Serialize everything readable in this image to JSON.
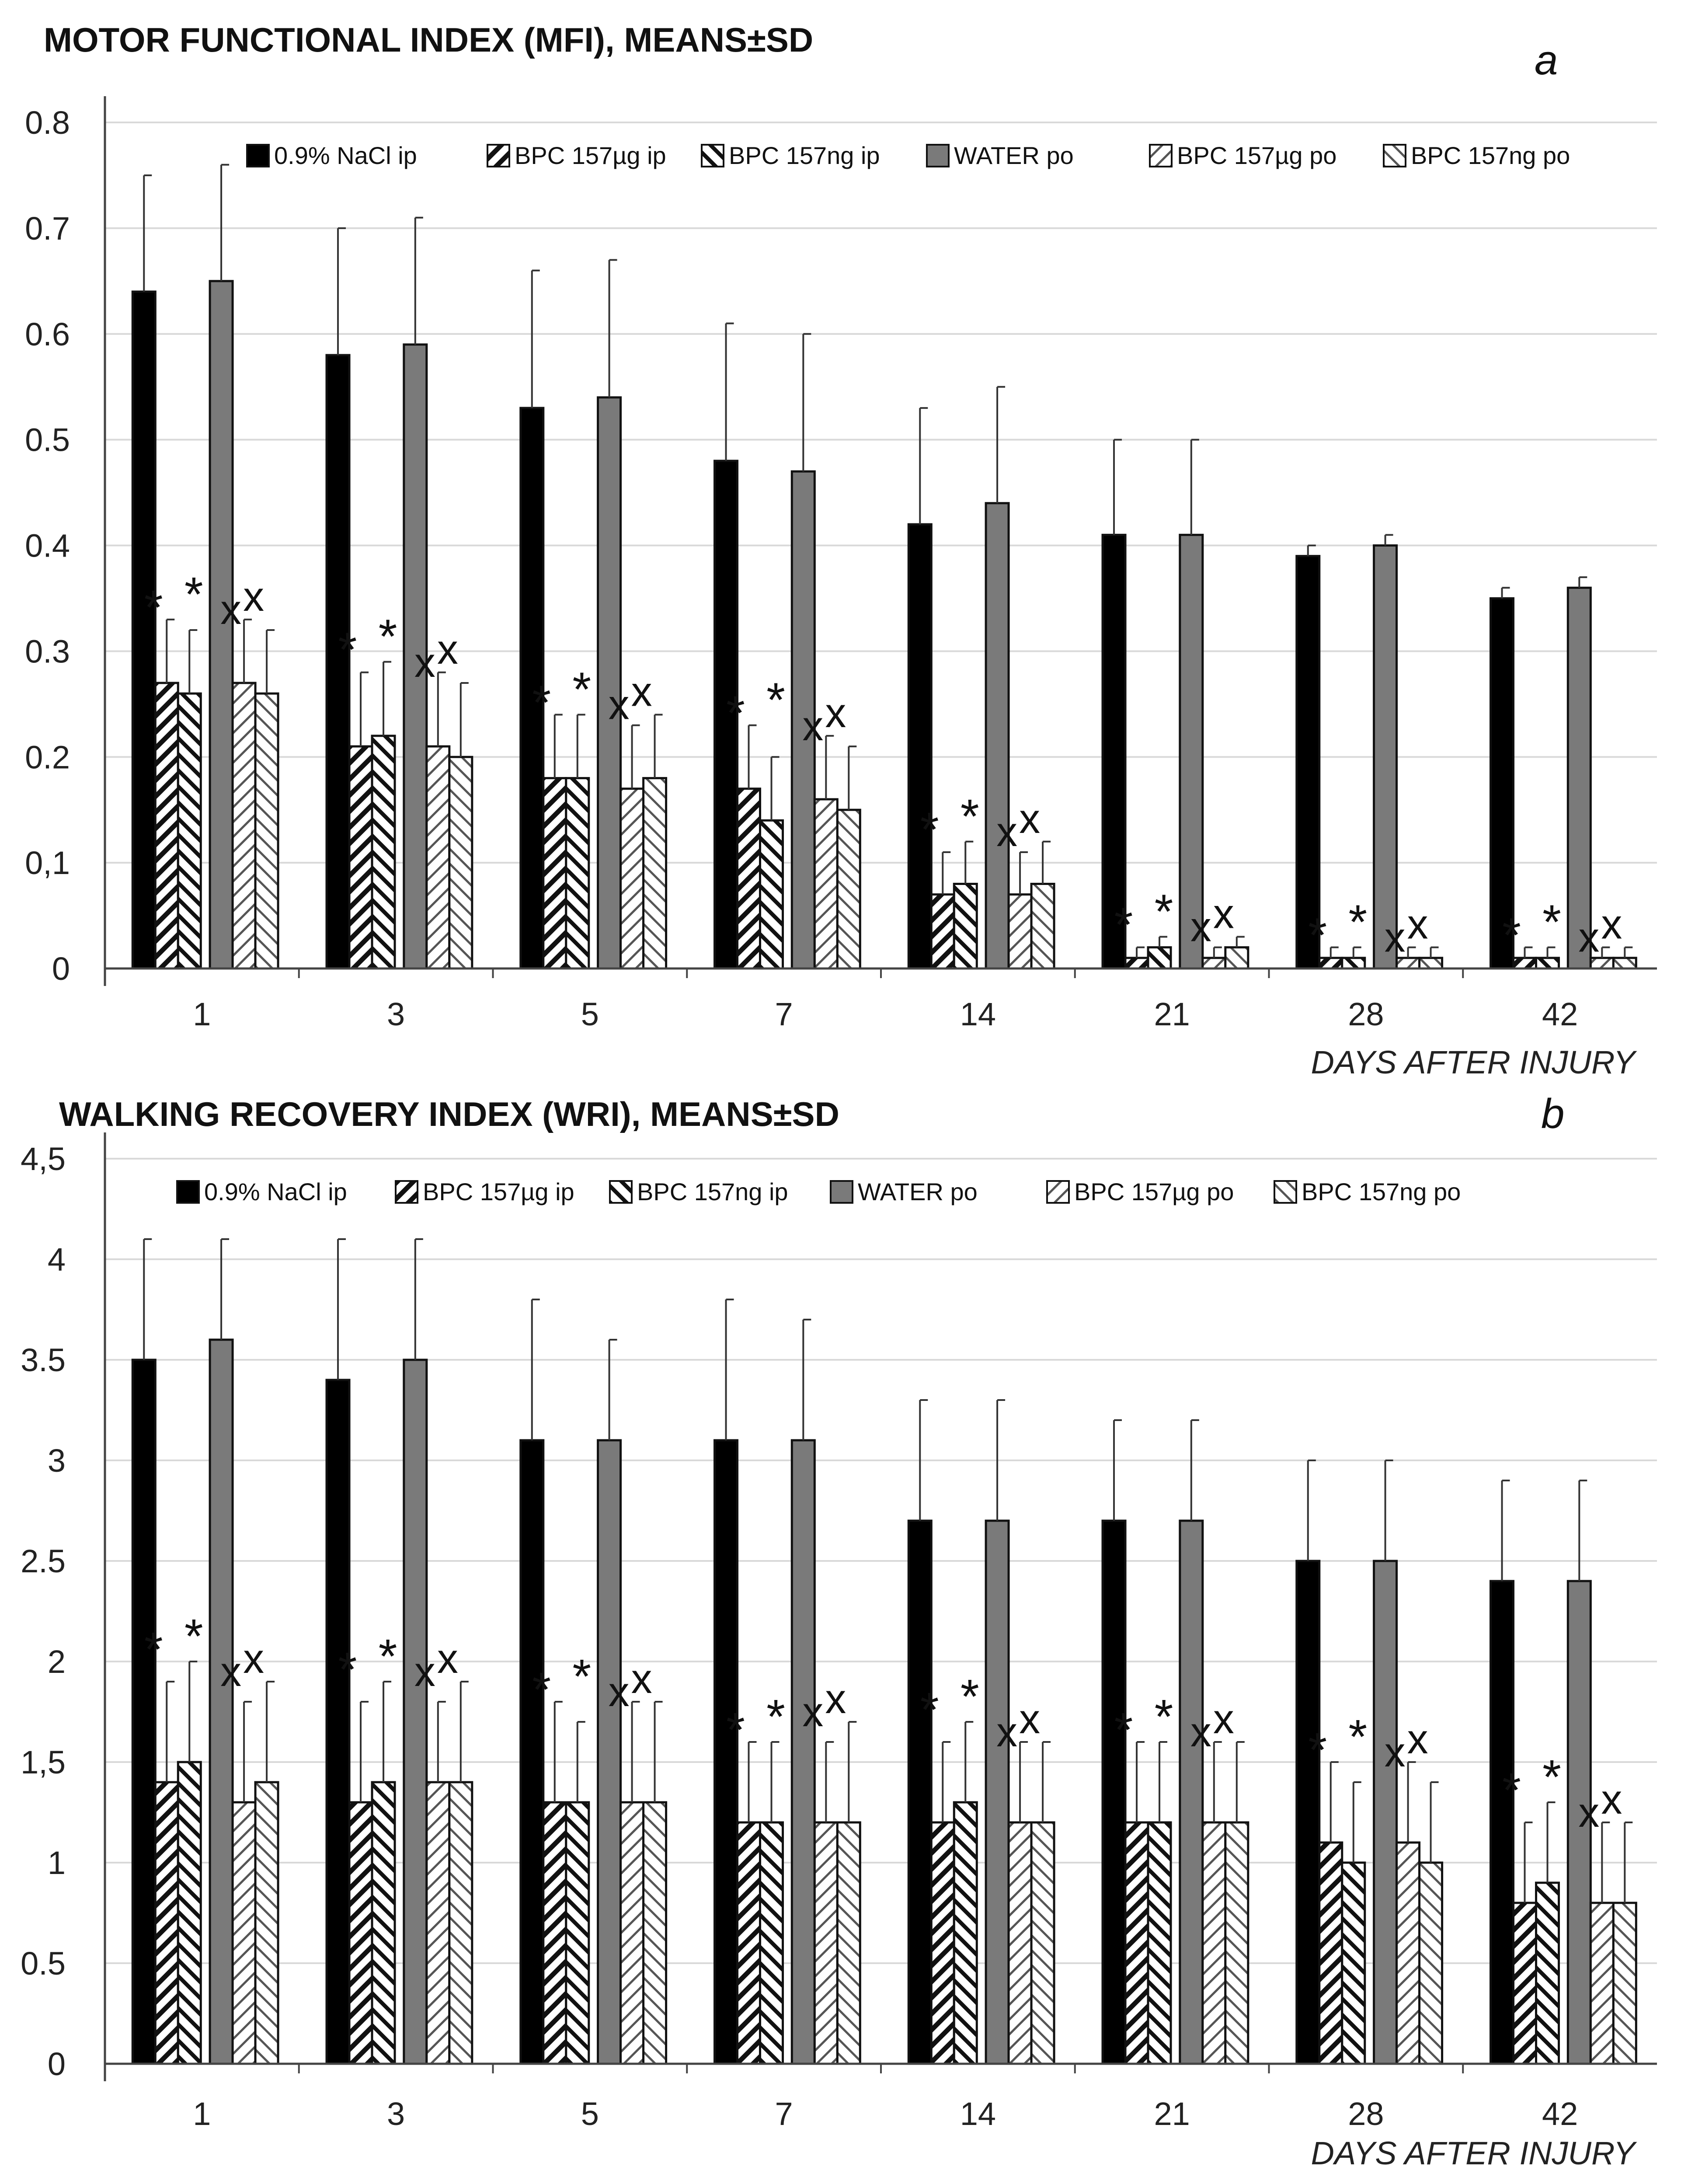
{
  "chart_data": [
    {
      "type": "bar",
      "id": "mfi",
      "title": "MOTOR FUNCTIONAL INDEX (MFI), MEANS±SD",
      "panel_label": "a",
      "xlabel": "DAYS AFTER INJURY",
      "ylabel": "",
      "ylim": [
        0,
        0.8
      ],
      "yticks": [
        {
          "value": 0,
          "label": "0"
        },
        {
          "value": 0.1,
          "label": "0,1"
        },
        {
          "value": 0.2,
          "label": "0.2"
        },
        {
          "value": 0.3,
          "label": "0.3"
        },
        {
          "value": 0.4,
          "label": "0.4"
        },
        {
          "value": 0.5,
          "label": "0.5"
        },
        {
          "value": 0.6,
          "label": "0.6"
        },
        {
          "value": 0.7,
          "label": "0.7"
        },
        {
          "value": 0.8,
          "label": "0.8"
        }
      ],
      "grid": true,
      "legend_position": "top",
      "categories": [
        "1",
        "3",
        "5",
        "7",
        "14",
        "21",
        "28",
        "42"
      ],
      "series": [
        {
          "name": "0.9% NaCl ip",
          "style": "black",
          "values": [
            0.64,
            0.58,
            0.53,
            0.48,
            0.42,
            0.41,
            0.39,
            0.35
          ],
          "sd": [
            0.11,
            0.12,
            0.13,
            0.13,
            0.11,
            0.09,
            0.01,
            0.01
          ]
        },
        {
          "name": "BPC 157µg ip",
          "style": "hatch-dense",
          "values": [
            0.27,
            0.21,
            0.18,
            0.17,
            0.07,
            0.01,
            0.01,
            0.01
          ],
          "sd": [
            0.06,
            0.07,
            0.06,
            0.06,
            0.04,
            0.01,
            0.01,
            0.01
          ]
        },
        {
          "name": "BPC 157ng ip",
          "style": "hatch-back",
          "values": [
            0.26,
            0.22,
            0.18,
            0.14,
            0.08,
            0.02,
            0.01,
            0.01
          ],
          "sd": [
            0.06,
            0.07,
            0.06,
            0.06,
            0.04,
            0.01,
            0.01,
            0.01
          ]
        },
        {
          "name": "WATER po",
          "style": "grey",
          "values": [
            0.65,
            0.59,
            0.54,
            0.47,
            0.44,
            0.41,
            0.4,
            0.36
          ],
          "sd": [
            0.11,
            0.12,
            0.13,
            0.13,
            0.11,
            0.09,
            0.01,
            0.01
          ]
        },
        {
          "name": "BPC 157µg po",
          "style": "hatch-light",
          "values": [
            0.27,
            0.21,
            0.17,
            0.16,
            0.07,
            0.01,
            0.01,
            0.01
          ],
          "sd": [
            0.06,
            0.07,
            0.06,
            0.06,
            0.04,
            0.01,
            0.01,
            0.01
          ]
        },
        {
          "name": "BPC 157ng po",
          "style": "hatch-light-back",
          "values": [
            0.26,
            0.2,
            0.18,
            0.15,
            0.08,
            0.02,
            0.01,
            0.01
          ],
          "sd": [
            0.06,
            0.07,
            0.06,
            0.06,
            0.04,
            0.01,
            0.01,
            0.01
          ]
        }
      ],
      "annotations": {
        "star_symbol": "*",
        "x_symbol": "x",
        "note": "significance markers above BPC 157 ip (*) and po (x) groups at every time point"
      }
    },
    {
      "type": "bar",
      "id": "wri",
      "title": "WALKING RECOVERY  INDEX (WRI), MEANS±SD",
      "panel_label": "b",
      "xlabel": "DAYS AFTER INJURY",
      "ylabel": "",
      "ylim": [
        0,
        4.5
      ],
      "yticks": [
        {
          "value": 0,
          "label": "0"
        },
        {
          "value": 0.5,
          "label": "0.5"
        },
        {
          "value": 1,
          "label": "1"
        },
        {
          "value": 1.5,
          "label": "1,5"
        },
        {
          "value": 2,
          "label": "2"
        },
        {
          "value": 2.5,
          "label": "2.5"
        },
        {
          "value": 3,
          "label": "3"
        },
        {
          "value": 3.5,
          "label": "3.5"
        },
        {
          "value": 4,
          "label": "4"
        },
        {
          "value": 4.5,
          "label": "4,5"
        }
      ],
      "grid": true,
      "legend_position": "top",
      "categories": [
        "1",
        "3",
        "5",
        "7",
        "14",
        "21",
        "28",
        "42"
      ],
      "series": [
        {
          "name": "0.9% NaCl ip",
          "style": "black",
          "values": [
            3.5,
            3.4,
            3.1,
            3.1,
            2.7,
            2.7,
            2.5,
            2.4
          ],
          "sd": [
            0.6,
            0.7,
            0.7,
            0.7,
            0.6,
            0.5,
            0.5,
            0.5
          ]
        },
        {
          "name": "BPC 157µg ip",
          "style": "hatch-dense",
          "values": [
            1.4,
            1.3,
            1.3,
            1.2,
            1.2,
            1.2,
            1.1,
            0.8
          ],
          "sd": [
            0.5,
            0.5,
            0.5,
            0.4,
            0.4,
            0.4,
            0.4,
            0.4
          ]
        },
        {
          "name": "BPC 157ng ip",
          "style": "hatch-back",
          "values": [
            1.5,
            1.4,
            1.3,
            1.2,
            1.3,
            1.2,
            1.0,
            0.9
          ],
          "sd": [
            0.5,
            0.5,
            0.4,
            0.4,
            0.4,
            0.4,
            0.4,
            0.4
          ]
        },
        {
          "name": "WATER po",
          "style": "grey",
          "values": [
            3.6,
            3.5,
            3.1,
            3.1,
            2.7,
            2.7,
            2.5,
            2.4
          ],
          "sd": [
            0.5,
            0.6,
            0.5,
            0.6,
            0.6,
            0.5,
            0.5,
            0.5
          ]
        },
        {
          "name": "BPC 157µg po",
          "style": "hatch-light",
          "values": [
            1.3,
            1.4,
            1.3,
            1.2,
            1.2,
            1.2,
            1.1,
            0.8
          ],
          "sd": [
            0.5,
            0.4,
            0.5,
            0.4,
            0.4,
            0.4,
            0.4,
            0.4
          ]
        },
        {
          "name": "BPC 157ng po",
          "style": "hatch-light-back",
          "values": [
            1.4,
            1.4,
            1.3,
            1.2,
            1.2,
            1.2,
            1.0,
            0.8
          ],
          "sd": [
            0.5,
            0.5,
            0.5,
            0.5,
            0.4,
            0.4,
            0.4,
            0.4
          ]
        }
      ],
      "annotations": {
        "star_symbol": "*",
        "x_symbol": "x",
        "note": "significance markers above BPC 157 ip (*) and po (x) groups at every time point"
      }
    }
  ]
}
